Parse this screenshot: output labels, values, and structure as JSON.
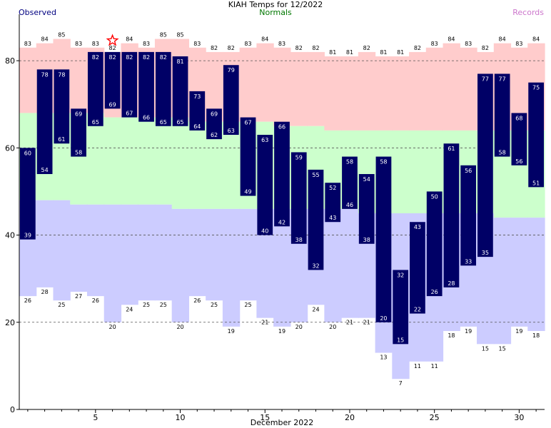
{
  "chart_data": {
    "type": "bar",
    "title": "KIAH Temps for 12/2022",
    "legend": {
      "observed": "Observed",
      "normals": "Normals",
      "records": "Records",
      "placement": "top"
    },
    "xlabel": "December 2022",
    "ylabel": "",
    "x": [
      1,
      2,
      3,
      4,
      5,
      6,
      7,
      8,
      9,
      10,
      11,
      12,
      13,
      14,
      15,
      16,
      17,
      18,
      19,
      20,
      21,
      22,
      23,
      24,
      25,
      26,
      27,
      28,
      29,
      30,
      31
    ],
    "xlim": [
      0.5,
      31.5
    ],
    "ylim": [
      0,
      90
    ],
    "x_ticks": [
      5,
      10,
      15,
      20,
      25,
      30
    ],
    "y_ticks": [
      0,
      20,
      40,
      60,
      80
    ],
    "grid": "dashed horizontal at 20, 40, 60, 80",
    "observed_high": [
      60,
      78,
      78,
      69,
      82,
      82,
      82,
      82,
      82,
      81,
      73,
      69,
      79,
      67,
      63,
      66,
      59,
      55,
      52,
      58,
      54,
      58,
      32,
      43,
      50,
      61,
      56,
      77,
      77,
      68,
      75
    ],
    "observed_low": [
      39,
      54,
      61,
      58,
      65,
      69,
      67,
      66,
      65,
      65,
      64,
      62,
      63,
      49,
      40,
      42,
      38,
      32,
      43,
      46,
      38,
      20,
      15,
      22,
      26,
      28,
      33,
      35,
      58,
      56,
      51
    ],
    "record_high": [
      83,
      84,
      85,
      83,
      83,
      82,
      84,
      83,
      85,
      85,
      83,
      82,
      82,
      83,
      84,
      83,
      82,
      82,
      81,
      81,
      82,
      81,
      81,
      82,
      83,
      84,
      83,
      82,
      84,
      83,
      84
    ],
    "record_low": [
      26,
      28,
      25,
      27,
      26,
      20,
      24,
      25,
      25,
      20,
      26,
      25,
      19,
      25,
      21,
      19,
      20,
      24,
      20,
      21,
      21,
      13,
      7,
      11,
      11,
      18,
      19,
      15,
      15,
      19,
      18
    ],
    "normal_high": [
      68,
      68,
      68,
      68,
      68,
      67,
      67,
      67,
      67,
      67,
      66,
      66,
      66,
      66,
      66,
      65,
      65,
      65,
      64,
      64,
      64,
      64,
      64,
      64,
      64,
      64,
      64,
      64,
      64,
      64,
      64
    ],
    "normal_low": [
      48,
      48,
      48,
      47,
      47,
      47,
      47,
      47,
      47,
      46,
      46,
      46,
      46,
      46,
      46,
      46,
      46,
      46,
      46,
      46,
      45,
      45,
      45,
      45,
      45,
      45,
      45,
      45,
      44,
      44,
      44
    ],
    "record_marker": {
      "day": 6,
      "symbol": "star"
    },
    "colors": {
      "record_band": "#ffcccc",
      "normal_band": "#ccffcc",
      "low_band": "#ccccff",
      "observed_bar": "#000066",
      "grid": "#555555",
      "marker": "#ff0000"
    }
  }
}
